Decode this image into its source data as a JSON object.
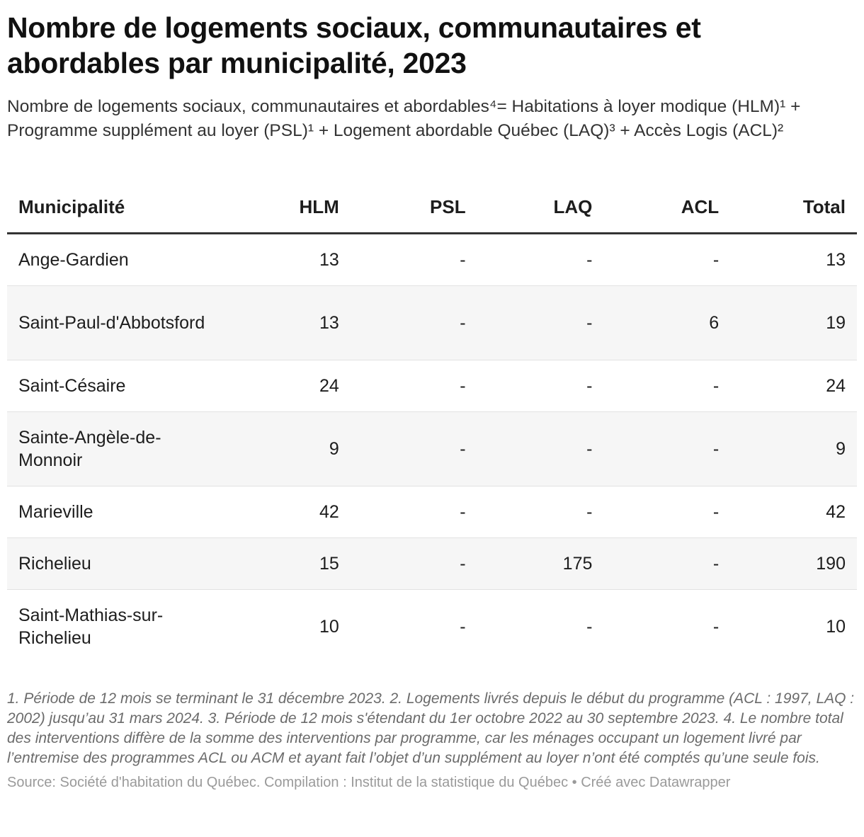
{
  "title": "Nombre de logements sociaux, communautaires et abordables par municipalité, 2023",
  "subtitle": "Nombre de logements sociaux, communautaires et abordables⁴= Habitations à loyer modique (HLM)¹ + Programme supplément au loyer (PSL)¹ + Logement abordable Québec (LAQ)³ + Accès Logis (ACL)²",
  "notes": "1. Période de 12 mois se terminant le 31 décembre 2023. 2. Logements livrés depuis le début du programme (ACL : 1997, LAQ : 2002) jusqu’au 31 mars 2024. 3. Période de 12 mois s'étendant du 1er octobre 2022 au 30 septembre 2023. 4. Le nombre total des interventions diffère de la somme des interventions par programme, car les ménages occupant un logement livré par l’entremise des programmes ACL ou ACM et ayant fait l’objet d’un supplément au loyer n’ont été comptés qu’une seule fois.",
  "source": "Source: Société d'habitation du Québec. Compilation : Institut de la statistique du Québec • Créé avec Datawrapper",
  "chart_data": {
    "type": "table",
    "columns": [
      "Municipalité",
      "HLM",
      "PSL",
      "LAQ",
      "ACL",
      "Total"
    ],
    "rows": [
      [
        "Ange-Gardien",
        "13",
        "-",
        "-",
        "-",
        "13"
      ],
      [
        "Saint-Paul-d'Abbotsford",
        "13",
        "-",
        "-",
        "6",
        "19"
      ],
      [
        "Saint-Césaire",
        "24",
        "-",
        "-",
        "-",
        "24"
      ],
      [
        "Sainte-Angèle-de-Monnoir",
        "9",
        "-",
        "-",
        "-",
        "9"
      ],
      [
        "Marieville",
        "42",
        "-",
        "-",
        "-",
        "42"
      ],
      [
        "Richelieu",
        "15",
        "-",
        "175",
        "-",
        "190"
      ],
      [
        "Saint-Mathias-sur-Richelieu",
        "10",
        "-",
        "-",
        "-",
        "10"
      ]
    ]
  }
}
